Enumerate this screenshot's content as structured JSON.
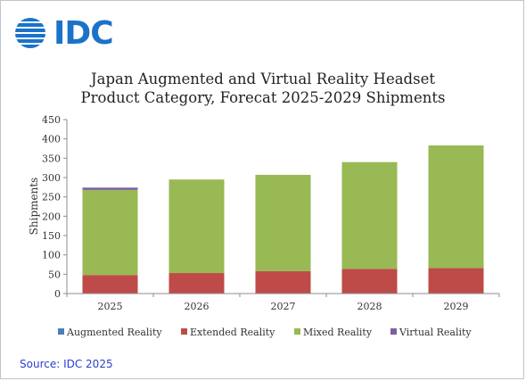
{
  "brand": {
    "name": "IDC",
    "color": "#1a73c9"
  },
  "chart_data": {
    "type": "bar",
    "stacked": true,
    "title_line1": "Japan Augmented and Virtual Reality Headset",
    "title_line2": "Product Category, Forecat 2025-2029 Shipments",
    "xlabel": "",
    "ylabel": "Shipments",
    "ylim": [
      0,
      450
    ],
    "yticks": [
      0,
      50,
      100,
      150,
      200,
      250,
      300,
      350,
      400,
      450
    ],
    "grid": false,
    "legend_position": "bottom",
    "categories": [
      "2025",
      "2026",
      "2027",
      "2028",
      "2029"
    ],
    "series": [
      {
        "name": "Augmented Reality",
        "color": "#4a7ebb",
        "values": [
          1,
          0,
          0,
          0,
          0
        ]
      },
      {
        "name": "Extended Reality",
        "color": "#be4b48",
        "values": [
          47,
          53,
          58,
          64,
          66
        ]
      },
      {
        "name": "Mixed Reality",
        "color": "#98b954",
        "values": [
          220,
          242,
          249,
          276,
          317
        ]
      },
      {
        "name": "Virtual Reality",
        "color": "#7d5fa0",
        "values": [
          6,
          0,
          0,
          0,
          0
        ]
      }
    ]
  },
  "source": {
    "text": "Source: IDC 2025",
    "color": "#2a3fd0"
  }
}
